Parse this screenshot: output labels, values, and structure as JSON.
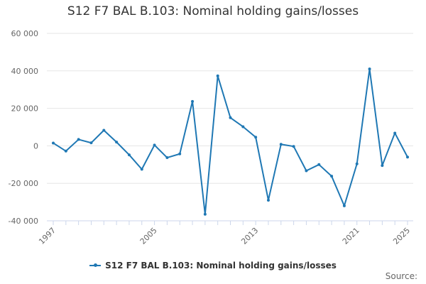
{
  "title": "S12 F7 BAL B.103: Nominal holding gains/losses",
  "source_label": "Source:",
  "colors": {
    "series": "#1f78b4",
    "grid": "#e6e6e6",
    "axis_text": "#666666",
    "axis_line": "#ccd6eb"
  },
  "chart_data": {
    "type": "line",
    "x": [
      1997,
      1998,
      1999,
      2000,
      2001,
      2002,
      2003,
      2004,
      2005,
      2006,
      2007,
      2008,
      2009,
      2010,
      2011,
      2012,
      2013,
      2014,
      2015,
      2016,
      2017,
      2018,
      2019,
      2020,
      2021,
      2022,
      2023,
      2024,
      2025
    ],
    "series": [
      {
        "name": "S12 F7 BAL B.103: Nominal holding gains/losses",
        "values": [
          1500,
          -2800,
          3400,
          1600,
          8300,
          2000,
          -4800,
          -12500,
          400,
          -6300,
          -4300,
          23700,
          -36500,
          37300,
          15000,
          10200,
          4600,
          -29000,
          800,
          -300,
          -13300,
          -10000,
          -16200,
          -32000,
          -9600,
          41000,
          -10500,
          6800,
          -6000
        ]
      }
    ],
    "x_ticks": [
      "1997",
      "2005",
      "2013",
      "2021",
      "2025"
    ],
    "y_ticks": [
      "60 000",
      "40 000",
      "20 000",
      "0",
      "-20 000",
      "-40 000"
    ],
    "ylim": [
      -40000,
      60000
    ],
    "xlim": [
      1997,
      2025
    ],
    "grid": true,
    "legend_position": "bottom"
  }
}
